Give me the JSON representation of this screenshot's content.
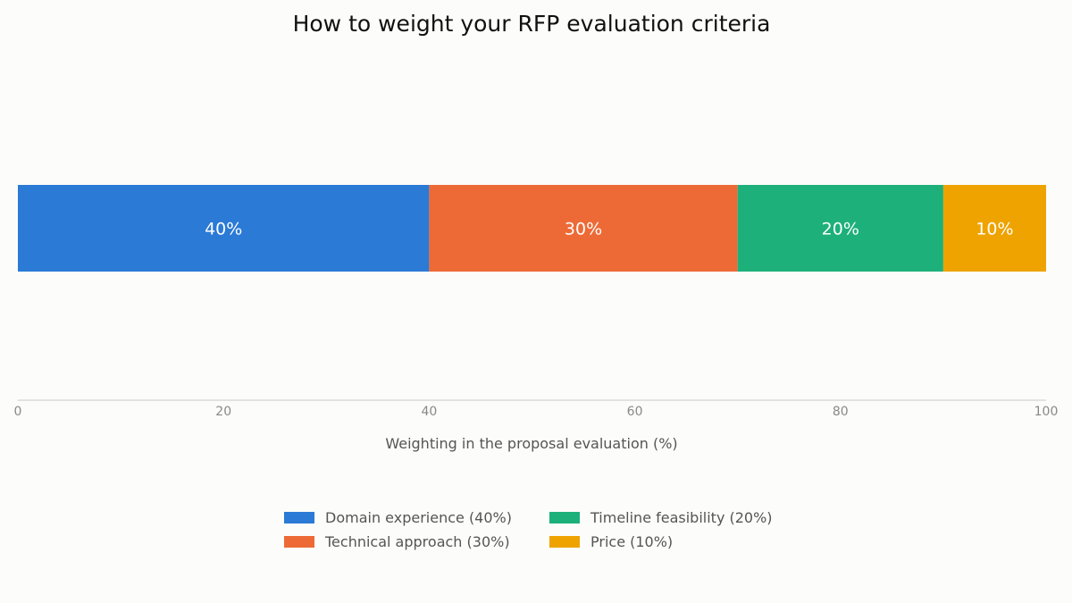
{
  "chart_data": {
    "type": "bar",
    "orientation": "horizontal",
    "stacked": true,
    "title": "How to weight your RFP evaluation criteria",
    "xlabel": "Weighting in the proposal evaluation (%)",
    "ylabel": "",
    "xlim": [
      0,
      100
    ],
    "xticks": [
      "0",
      "20",
      "40",
      "60",
      "80",
      "100"
    ],
    "grid": false,
    "legend_position": "bottom",
    "series": [
      {
        "name": "Domain experience (40%)",
        "value": 40,
        "label": "40%",
        "color": "#2a7ad6"
      },
      {
        "name": "Technical approach (30%)",
        "value": 30,
        "label": "30%",
        "color": "#ed6a36"
      },
      {
        "name": "Timeline feasibility (20%)",
        "value": 20,
        "label": "20%",
        "color": "#1db07b"
      },
      {
        "name": "Price (10%)",
        "value": 10,
        "label": "10%",
        "color": "#eea300"
      }
    ]
  }
}
